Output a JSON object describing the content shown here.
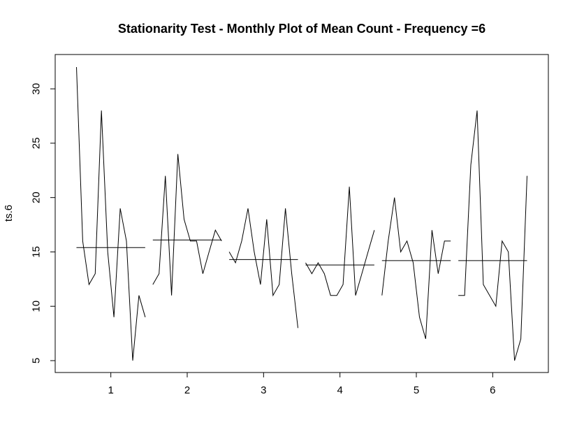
{
  "chart_data": {
    "type": "line",
    "title": "Stationarity Test - Monthly Plot of Mean Count - Frequency =6",
    "xlabel": "",
    "ylabel": "ts.6",
    "xlim": [
      0.5,
      6.5
    ],
    "ylim": [
      4,
      32
    ],
    "x_ticks": [
      "1",
      "2",
      "3",
      "4",
      "5",
      "6"
    ],
    "y_ticks": [
      "5",
      "10",
      "15",
      "20",
      "25",
      "30"
    ],
    "grid": false,
    "legend": "none",
    "line_color": "#000000",
    "subseries": [
      {
        "season": "1",
        "values": [
          32,
          16,
          12,
          13,
          28,
          15,
          9,
          19,
          16,
          5,
          11,
          9
        ],
        "mean": 15.4
      },
      {
        "season": "2",
        "values": [
          12,
          13,
          22,
          11,
          24,
          18,
          16,
          16,
          13,
          15,
          17,
          16
        ],
        "mean": 16.1
      },
      {
        "season": "3",
        "values": [
          15,
          14,
          16,
          19,
          15,
          12,
          18,
          11,
          12,
          19,
          13,
          8
        ],
        "mean": 14.3
      },
      {
        "season": "4",
        "values": [
          14,
          13,
          14,
          13,
          11,
          11,
          12,
          21,
          11,
          13,
          15,
          17
        ],
        "mean": 13.8
      },
      {
        "season": "5",
        "values": [
          11,
          16,
          20,
          15,
          16,
          14,
          9,
          7,
          17,
          13,
          16,
          16
        ],
        "mean": 14.2
      },
      {
        "season": "6",
        "values": [
          11,
          11,
          23,
          28,
          12,
          11,
          10,
          16,
          15,
          5,
          7,
          22
        ],
        "mean": 14.2
      }
    ]
  }
}
